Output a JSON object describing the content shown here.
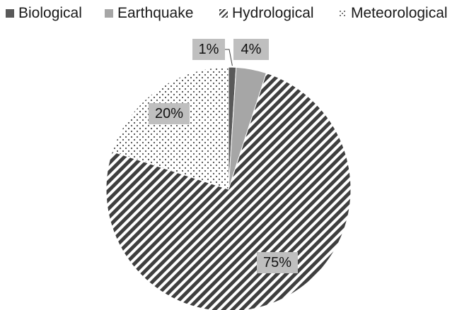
{
  "chart_data": {
    "type": "pie",
    "title": "",
    "legend_position": "top",
    "categories": [
      "Biological",
      "Earthquake",
      "Hydrological",
      "Meteorological"
    ],
    "values": [
      1,
      4,
      75,
      20
    ],
    "data_labels": [
      "1%",
      "4%",
      "75%",
      "20%"
    ],
    "fills": [
      {
        "pattern": "solid",
        "color": "#595959"
      },
      {
        "pattern": "solid",
        "color": "#a6a6a6"
      },
      {
        "pattern": "diagonal-stripes",
        "color": "#3f3f3f"
      },
      {
        "pattern": "dots",
        "color": "#4d4d4d"
      }
    ],
    "label_background": "#bfbfbf"
  }
}
